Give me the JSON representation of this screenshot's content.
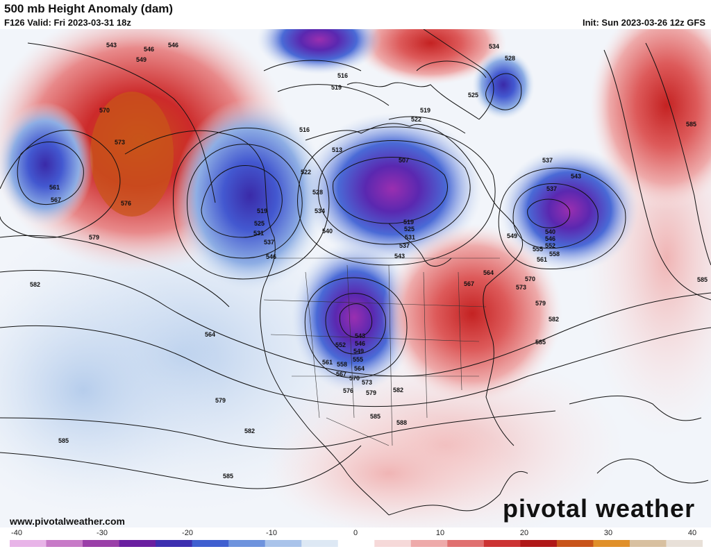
{
  "header": {
    "title": "500 mb Height Anomaly (dam)",
    "valid": "F126 Valid: Fri 2023-03-31 18z",
    "init": "Init: Sun 2023-03-26 12z GFS"
  },
  "footer": {
    "website": "www.pivotalweather.com",
    "brand": "pivotal weather"
  },
  "colorbar": {
    "ticks": [
      "-40",
      "-30",
      "-20",
      "-10",
      "0",
      "10",
      "20",
      "30",
      "40"
    ],
    "colors": [
      "#e8b4e8",
      "#c77ac7",
      "#9a3fa8",
      "#6a1fa0",
      "#3d2fb0",
      "#3f5fd0",
      "#6e93dd",
      "#a9c3ea",
      "#dde8f4",
      "#ffffff",
      "#f6d9d9",
      "#eeaaaa",
      "#e07070",
      "#cc3333",
      "#b01818",
      "#c8541a",
      "#e0902a",
      "#d8c0a0",
      "#e8e0d8"
    ]
  },
  "contour_labels": [
    {
      "text": "543"
    },
    {
      "text": "546"
    },
    {
      "text": "546"
    },
    {
      "text": "549"
    },
    {
      "text": "570"
    },
    {
      "text": "573"
    },
    {
      "text": "576"
    },
    {
      "text": "579"
    },
    {
      "text": "561"
    },
    {
      "text": "567"
    },
    {
      "text": "582"
    },
    {
      "text": "585"
    },
    {
      "text": "585"
    },
    {
      "text": "579"
    },
    {
      "text": "582"
    },
    {
      "text": "516"
    },
    {
      "text": "519"
    },
    {
      "text": "516"
    },
    {
      "text": "513"
    },
    {
      "text": "522"
    },
    {
      "text": "528"
    },
    {
      "text": "534"
    },
    {
      "text": "540"
    },
    {
      "text": "519"
    },
    {
      "text": "525"
    },
    {
      "text": "531"
    },
    {
      "text": "537"
    },
    {
      "text": "546"
    },
    {
      "text": "507"
    },
    {
      "text": "519"
    },
    {
      "text": "525"
    },
    {
      "text": "531"
    },
    {
      "text": "537"
    },
    {
      "text": "543"
    },
    {
      "text": "519"
    },
    {
      "text": "522"
    },
    {
      "text": "525"
    },
    {
      "text": "528"
    },
    {
      "text": "534"
    },
    {
      "text": "537"
    },
    {
      "text": "537"
    },
    {
      "text": "543"
    },
    {
      "text": "540"
    },
    {
      "text": "546"
    },
    {
      "text": "549"
    },
    {
      "text": "552"
    },
    {
      "text": "555"
    },
    {
      "text": "558"
    },
    {
      "text": "561"
    },
    {
      "text": "564"
    },
    {
      "text": "567"
    },
    {
      "text": "570"
    },
    {
      "text": "573"
    },
    {
      "text": "579"
    },
    {
      "text": "582"
    },
    {
      "text": "585"
    },
    {
      "text": "585"
    },
    {
      "text": "585"
    },
    {
      "text": "564"
    },
    {
      "text": "552"
    },
    {
      "text": "543"
    },
    {
      "text": "546"
    },
    {
      "text": "549"
    },
    {
      "text": "555"
    },
    {
      "text": "558"
    },
    {
      "text": "561"
    },
    {
      "text": "564"
    },
    {
      "text": "567"
    },
    {
      "text": "570"
    },
    {
      "text": "573"
    },
    {
      "text": "576"
    },
    {
      "text": "579"
    },
    {
      "text": "582"
    },
    {
      "text": "585"
    },
    {
      "text": "588"
    }
  ]
}
